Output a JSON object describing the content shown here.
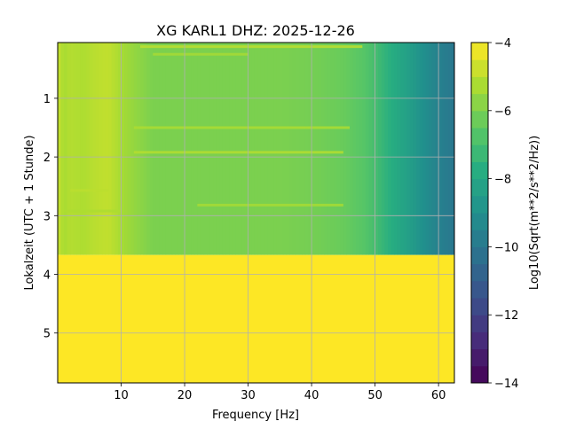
{
  "chart_data": {
    "type": "heatmap",
    "title": "XG KARL1  DHZ: 2025-12-26",
    "xlabel": "Frequency [Hz]",
    "ylabel": "Lokalzeit (UTC + 1 Stunde)",
    "colorbar_label": "Log10(Sqrt(m**2/s**2/Hz))",
    "colormap": "viridis",
    "xlim": [
      0,
      62.5
    ],
    "ylim": [
      5.85,
      0.05
    ],
    "y_inverted": true,
    "grid": true,
    "x_ticks": [
      10,
      20,
      30,
      40,
      50,
      60
    ],
    "y_ticks": [
      1,
      2,
      3,
      4,
      5
    ],
    "color_range": [
      -14,
      -4
    ],
    "colorbar_ticks": [
      -4,
      -6,
      -8,
      -10,
      -12,
      -14
    ],
    "data_end_time": 3.67,
    "fill_value_after_data_end": -4,
    "band_profile": {
      "frequency": [
        0,
        1,
        2,
        4,
        6,
        8,
        10,
        12,
        15,
        20,
        25,
        30,
        35,
        40,
        45,
        48,
        50,
        52,
        55,
        58,
        60,
        62.5
      ],
      "level": [
        -4.8,
        -5.3,
        -5.1,
        -5.2,
        -5.0,
        -4.9,
        -5.3,
        -5.6,
        -6.0,
        -6.0,
        -6.0,
        -6.0,
        -6.0,
        -6.1,
        -6.3,
        -6.6,
        -7.0,
        -7.6,
        -8.3,
        -9.1,
        -9.6,
        -10.0
      ]
    },
    "bright_streaks": [
      {
        "time": 0.12,
        "f_start": 13,
        "f_end": 48,
        "level": -5.0
      },
      {
        "time": 0.25,
        "f_start": 15,
        "f_end": 30,
        "level": -5.3
      },
      {
        "time": 1.5,
        "f_start": 12,
        "f_end": 46,
        "level": -5.2
      },
      {
        "time": 1.92,
        "f_start": 12,
        "f_end": 45,
        "level": -5.1
      },
      {
        "time": 2.57,
        "f_start": 2,
        "f_end": 8,
        "level": -5.0
      },
      {
        "time": 2.82,
        "f_start": 22,
        "f_end": 45,
        "level": -5.3
      },
      {
        "time": 2.92,
        "f_start": 1,
        "f_end": 10,
        "level": -5.2
      }
    ]
  }
}
